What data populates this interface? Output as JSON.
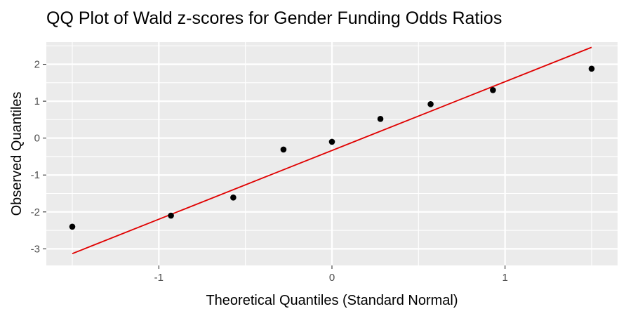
{
  "chart_data": {
    "type": "scatter",
    "title": "QQ Plot of Wald z-scores for Gender Funding Odds Ratios",
    "xlabel": "Theoretical Quantiles (Standard Normal)",
    "ylabel": "Observed Quantiles",
    "xlim": [
      -1.65,
      1.65
    ],
    "ylim": [
      -3.45,
      2.6
    ],
    "x_ticks": [
      -1,
      0,
      1
    ],
    "x_tick_labels": [
      "-1",
      "0",
      "1"
    ],
    "y_ticks": [
      2,
      1,
      0,
      -1,
      -2,
      -3
    ],
    "y_tick_labels": [
      "2",
      "1",
      "0",
      "-1",
      "-2",
      "-3"
    ],
    "grid": true,
    "points": [
      {
        "x": -1.5,
        "y": -2.4
      },
      {
        "x": -0.93,
        "y": -2.1
      },
      {
        "x": -0.57,
        "y": -1.61
      },
      {
        "x": -0.28,
        "y": -0.31
      },
      {
        "x": 0.0,
        "y": -0.1
      },
      {
        "x": 0.28,
        "y": 0.52
      },
      {
        "x": 0.57,
        "y": 0.92
      },
      {
        "x": 0.93,
        "y": 1.3
      },
      {
        "x": 1.5,
        "y": 1.88
      }
    ],
    "reference_line": {
      "x": [
        -1.5,
        1.5
      ],
      "y": [
        -3.13,
        2.46
      ]
    },
    "colors": {
      "panel_background": "#ebebeb",
      "grid": "#ffffff",
      "points": "#000000",
      "reference_line": "#e00000",
      "tick_label": "#4d4d4d"
    }
  }
}
